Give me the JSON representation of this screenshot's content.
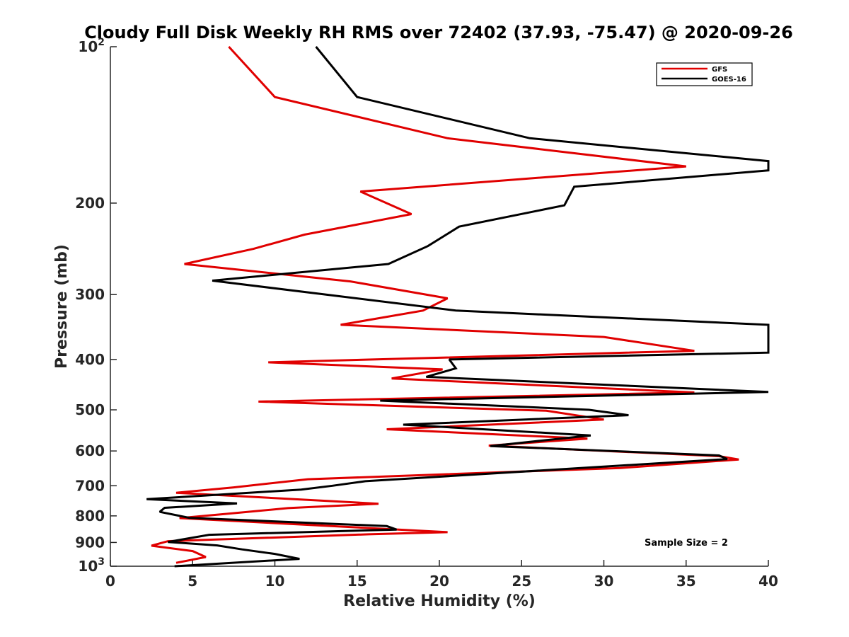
{
  "chart_data": {
    "type": "line",
    "title": "Cloudy Full Disk Weekly RH RMS over 72402 (37.93, -75.47) @ 2020-09-26",
    "xlabel": "Relative Humidity (%)",
    "ylabel": "Pressure (mb)",
    "xlim": [
      0,
      40
    ],
    "ylim": [
      100,
      1000
    ],
    "yscale": "log",
    "y_reversed": true,
    "grid": false,
    "legend_position": "top-right",
    "x_ticks": [
      0,
      5,
      10,
      15,
      20,
      25,
      30,
      35,
      40
    ],
    "x_tick_labels": [
      "0",
      "5",
      "10",
      "15",
      "20",
      "25",
      "30",
      "35",
      "40"
    ],
    "y_ticks": [
      100,
      200,
      300,
      400,
      500,
      600,
      700,
      800,
      900,
      1000
    ],
    "y_tick_labels": [
      {
        "base": "10",
        "exp": "2"
      },
      {
        "base": "200",
        "exp": ""
      },
      {
        "base": "300",
        "exp": ""
      },
      {
        "base": "400",
        "exp": ""
      },
      {
        "base": "500",
        "exp": ""
      },
      {
        "base": "600",
        "exp": ""
      },
      {
        "base": "700",
        "exp": ""
      },
      {
        "base": "800",
        "exp": ""
      },
      {
        "base": "900",
        "exp": ""
      },
      {
        "base": "10",
        "exp": "3"
      }
    ],
    "annotation": "Sample Size = 2",
    "series": [
      {
        "name": "GFS",
        "color": "#e00000",
        "points": [
          [
            7.2,
            100
          ],
          [
            10.0,
            125
          ],
          [
            20.5,
            150
          ],
          [
            35.0,
            170
          ],
          [
            15.2,
            190
          ],
          [
            18.3,
            210
          ],
          [
            11.8,
            230
          ],
          [
            8.7,
            245
          ],
          [
            4.5,
            262
          ],
          [
            14.6,
            283
          ],
          [
            20.5,
            305
          ],
          [
            19.0,
            322
          ],
          [
            14.0,
            343
          ],
          [
            30.0,
            362
          ],
          [
            35.5,
            385
          ],
          [
            9.6,
            405
          ],
          [
            20.2,
            418
          ],
          [
            17.1,
            435
          ],
          [
            35.5,
            463
          ],
          [
            9.0,
            482
          ],
          [
            26.5,
            502
          ],
          [
            30.0,
            522
          ],
          [
            16.8,
            545
          ],
          [
            29.0,
            568
          ],
          [
            23.0,
            586
          ],
          [
            37.0,
            614
          ],
          [
            38.2,
            623
          ],
          [
            31.0,
            647
          ],
          [
            12.0,
            680
          ],
          [
            7.5,
            705
          ],
          [
            4.0,
            722
          ],
          [
            16.3,
            758
          ],
          [
            10.8,
            773
          ],
          [
            7.0,
            793
          ],
          [
            4.2,
            808
          ],
          [
            20.5,
            860
          ],
          [
            15.7,
            868
          ],
          [
            3.5,
            895
          ],
          [
            2.5,
            913
          ],
          [
            5.0,
            935
          ],
          [
            5.8,
            960
          ],
          [
            4.0,
            985
          ]
        ]
      },
      {
        "name": "GOES-16",
        "color": "#000000",
        "points": [
          [
            12.5,
            100
          ],
          [
            15.0,
            125
          ],
          [
            25.5,
            150
          ],
          [
            40.0,
            166
          ],
          [
            40.0,
            173
          ],
          [
            28.2,
            186
          ],
          [
            27.6,
            202
          ],
          [
            21.2,
            222
          ],
          [
            19.3,
            242
          ],
          [
            16.9,
            262
          ],
          [
            6.2,
            282
          ],
          [
            21.0,
            322
          ],
          [
            40.0,
            343
          ],
          [
            40.0,
            388
          ],
          [
            20.6,
            400
          ],
          [
            21.0,
            416
          ],
          [
            19.2,
            432
          ],
          [
            40.0,
            462
          ],
          [
            16.4,
            480
          ],
          [
            29.1,
            500
          ],
          [
            31.5,
            512
          ],
          [
            17.8,
            534
          ],
          [
            29.2,
            560
          ],
          [
            23.1,
            587
          ],
          [
            37.0,
            612
          ],
          [
            37.5,
            622
          ],
          [
            15.5,
            686
          ],
          [
            13.5,
            700
          ],
          [
            11.6,
            712
          ],
          [
            2.2,
            743
          ],
          [
            7.7,
            757
          ],
          [
            3.3,
            772
          ],
          [
            3.0,
            786
          ],
          [
            4.8,
            807
          ],
          [
            16.8,
            837
          ],
          [
            17.4,
            850
          ],
          [
            6.0,
            870
          ],
          [
            3.5,
            898
          ],
          [
            6.5,
            912
          ],
          [
            8.0,
            928
          ],
          [
            10.0,
            947
          ],
          [
            11.5,
            968
          ],
          [
            3.9,
            1000
          ]
        ]
      }
    ]
  }
}
